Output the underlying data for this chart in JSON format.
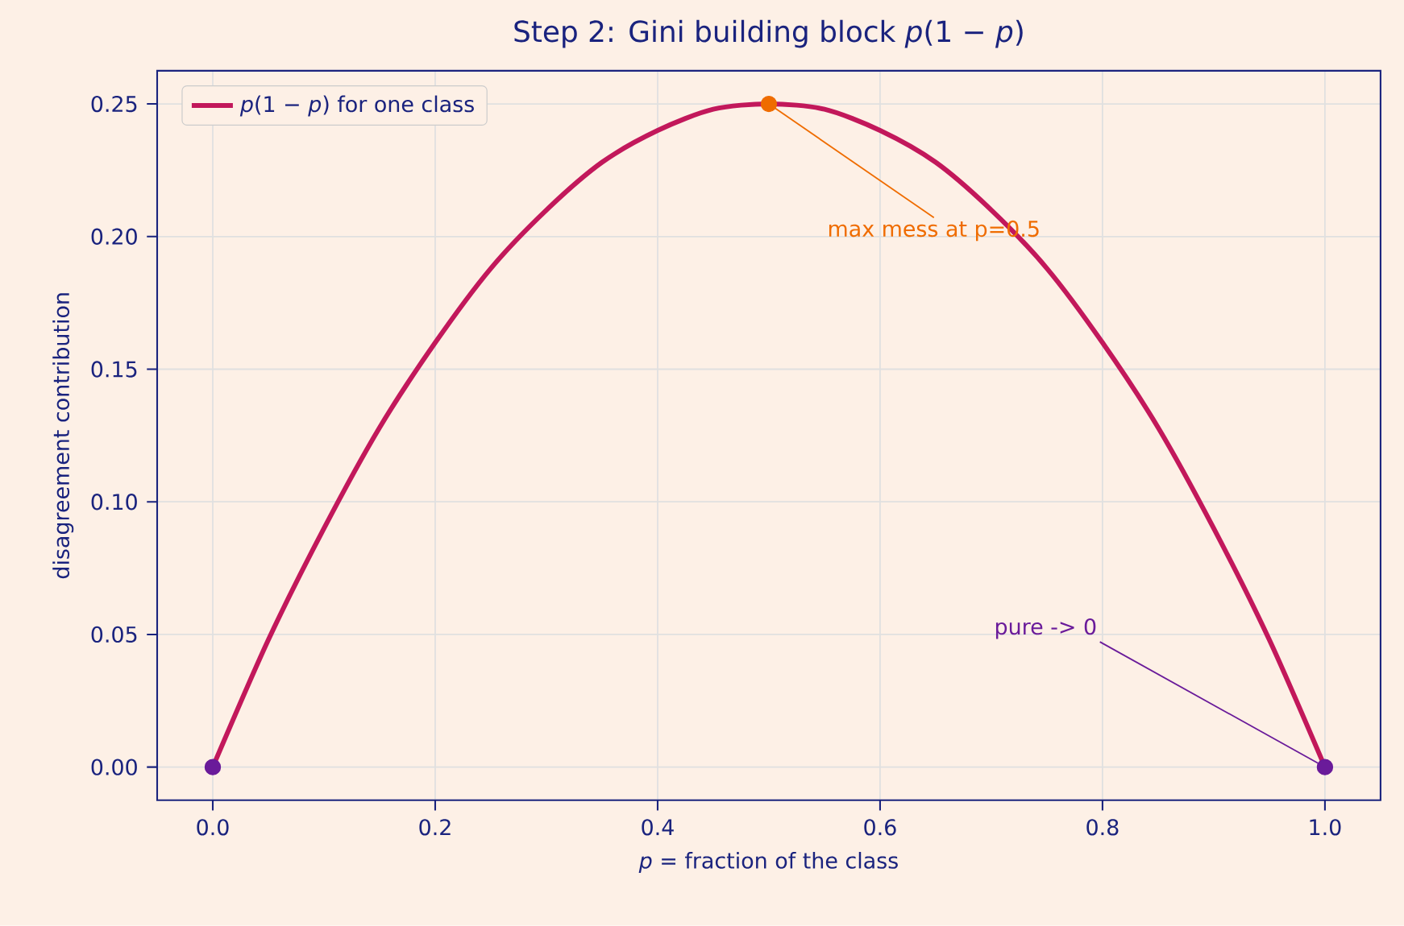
{
  "chart_data": {
    "type": "line",
    "title": "Step 2: Gini building block *p*(1 − *p*)",
    "xlabel": "*p* = fraction of the class",
    "ylabel": "disagreement contribution",
    "xlim": [
      -0.05,
      1.05
    ],
    "ylim": [
      -0.0125,
      0.2625
    ],
    "xticks": [
      {
        "value": 0,
        "label": "0.0"
      },
      0.2,
      0.4,
      0.6,
      0.8,
      {
        "value": 1,
        "label": "1.0"
      }
    ],
    "yticks": [
      {
        "value": 0,
        "label": "0.00"
      },
      {
        "value": 0.05,
        "label": "0.05"
      },
      {
        "value": 0.1,
        "label": "0.10"
      },
      {
        "value": 0.15,
        "label": "0.15"
      },
      {
        "value": 0.2,
        "label": "0.20"
      },
      {
        "value": 0.25,
        "label": "0.25"
      }
    ],
    "grid": true,
    "legend": "top left",
    "series": [
      {
        "name": "*p*(1 − *p*) for one class",
        "color": "#c2185b",
        "marker": "none",
        "x": [
          0,
          0.05,
          0.1,
          0.15,
          0.2,
          0.25,
          0.3,
          0.35,
          0.4,
          0.45,
          0.5,
          0.55,
          0.6,
          0.65,
          0.7,
          0.75,
          0.8,
          0.85,
          0.9,
          0.95,
          1
        ],
        "values": [
          0,
          0.048,
          0.09,
          0.128,
          0.16,
          0.188,
          0.21,
          0.228,
          0.24,
          0.248,
          0.25,
          0.248,
          0.24,
          0.228,
          0.21,
          0.188,
          0.16,
          0.128,
          0.09,
          0.048,
          0
        ]
      },
      {
        "type": "scatter",
        "color": "#6a1b9a",
        "marker": "circle",
        "x": [
          0,
          1
        ],
        "values": [
          0,
          0
        ]
      },
      {
        "type": "scatter",
        "color": "#ef6c00",
        "marker": "circle",
        "x": [
          0.5
        ],
        "values": [
          0.25
        ]
      }
    ],
    "annotations": [
      {
        "text": "max mess at p=0.5",
        "x": 0.5,
        "y": 0.25
      },
      {
        "text": "pure -> 0",
        "x": 1,
        "y": 0
      }
    ]
  }
}
